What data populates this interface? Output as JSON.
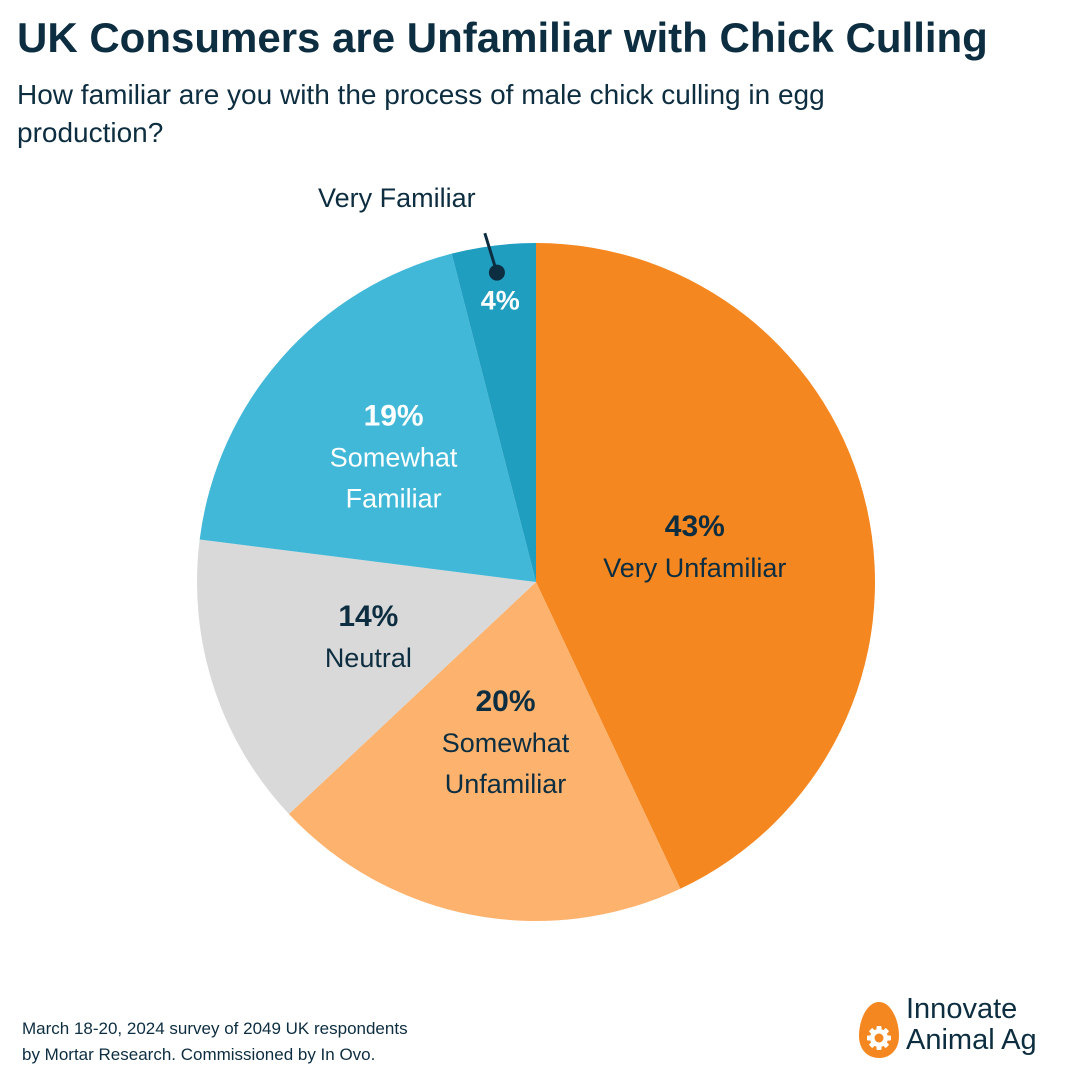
{
  "title": "UK Consumers are Unfamiliar with Chick Culling",
  "subtitle": "How familiar are you with the process of male chick culling in egg production?",
  "chart_data": {
    "type": "pie",
    "slices": [
      {
        "label": "Very Unfamiliar",
        "label_lines": [
          "Very Unfamiliar"
        ],
        "value": 43,
        "value_label": "43%",
        "color": "#f58720",
        "text_color": "#0d2d40"
      },
      {
        "label": "Somewhat Unfamiliar",
        "label_lines": [
          "Somewhat",
          "Unfamiliar"
        ],
        "value": 20,
        "value_label": "20%",
        "color": "#fdb36e",
        "text_color": "#0d2d40"
      },
      {
        "label": "Neutral",
        "label_lines": [
          "Neutral"
        ],
        "value": 14,
        "value_label": "14%",
        "color": "#d9d9d9",
        "text_color": "#0d2d40"
      },
      {
        "label": "Somewhat Familiar",
        "label_lines": [
          "Somewhat",
          "Familiar"
        ],
        "value": 19,
        "value_label": "19%",
        "color": "#42b8d8",
        "text_color": "#ffffff"
      },
      {
        "label": "Very Familiar",
        "label_lines": [
          "Very Familiar"
        ],
        "value": 4,
        "value_label": "4%",
        "color": "#1f9ec0",
        "text_color": "#ffffff"
      }
    ],
    "start": "12 o'clock",
    "direction": "clockwise"
  },
  "footnote": {
    "line1": "March 18-20, 2024 survey of 2049 UK respondents",
    "line2": "by Mortar Research. Commissioned by In Ovo."
  },
  "logo": {
    "line1": "Innovate",
    "line2": "Animal Ag",
    "accent_color": "#f58720"
  }
}
